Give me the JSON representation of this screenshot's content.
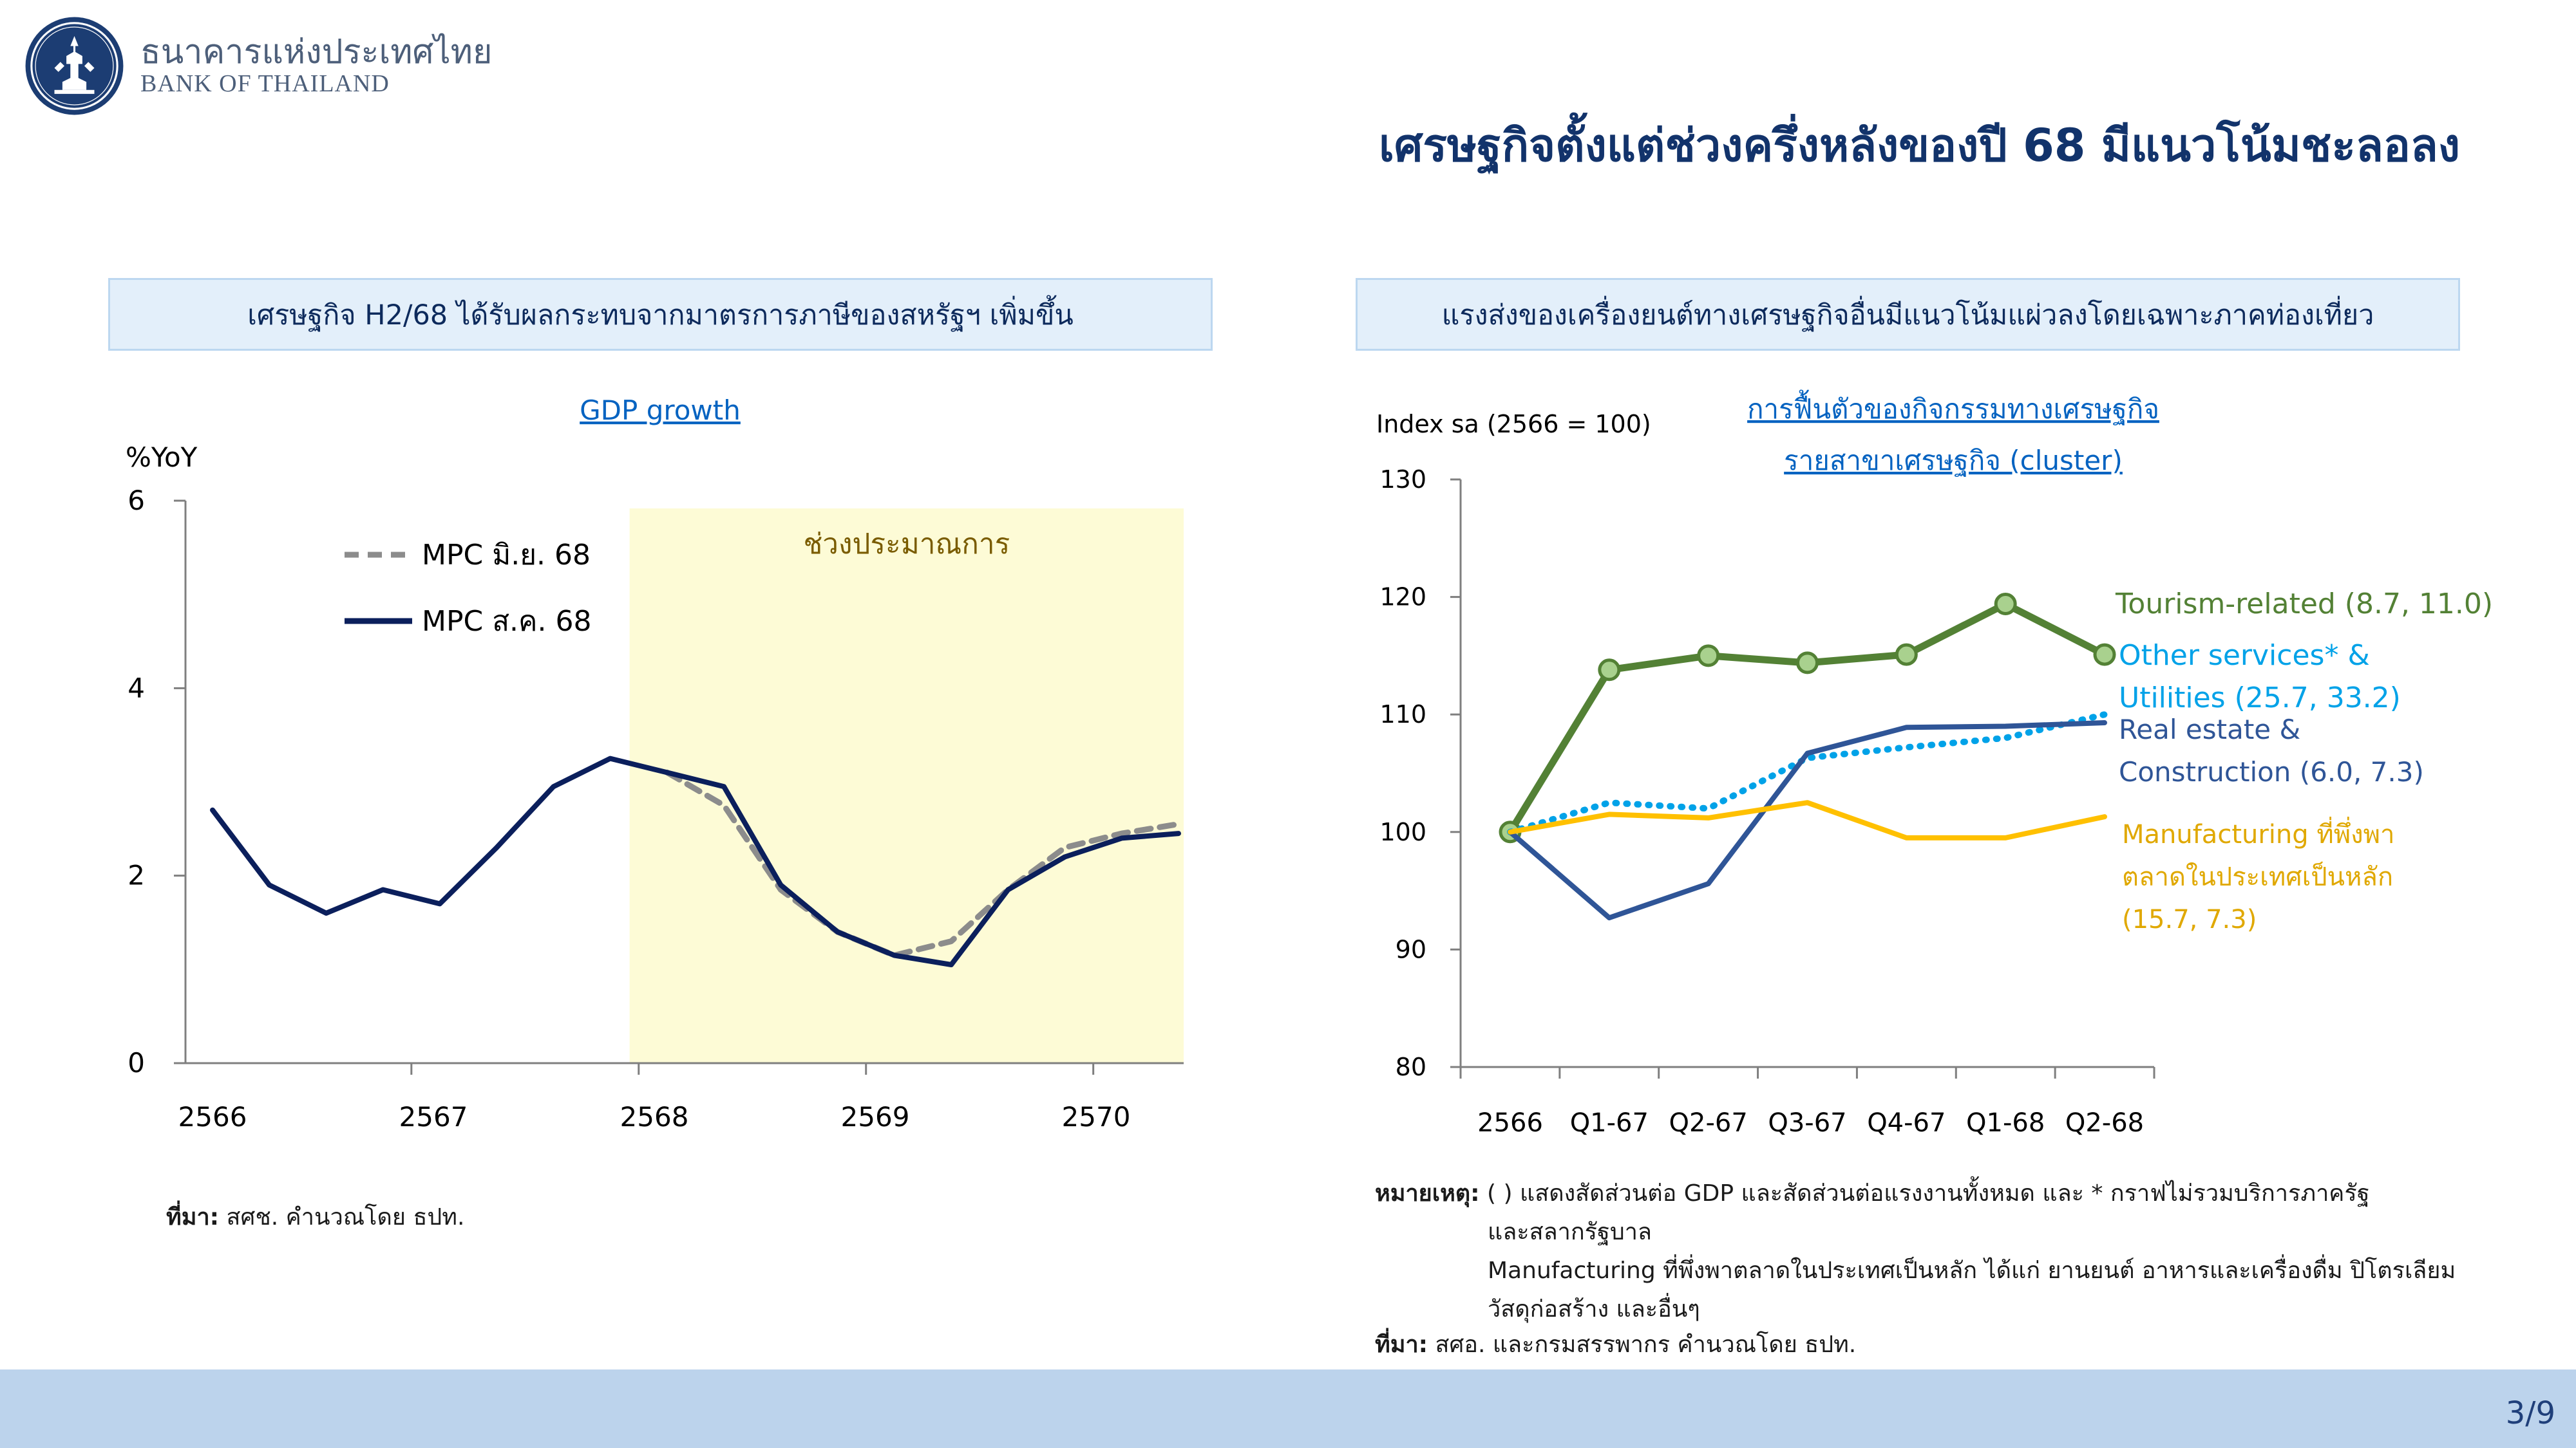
{
  "header": {
    "bank_name_th": "ธนาคารแห่งประเทศไทย",
    "bank_name_en": "BANK OF THAILAND",
    "logo_icon": "bank-of-thailand-seal-icon",
    "slide_title": "เศรษฐกิจตั้งแต่ช่วงครึ่งหลังของปี 68 มีแนวโน้มชะลอลง"
  },
  "left_panel": {
    "heading": "เศรษฐกิจ H2/68 ได้รับผลกระทบจากมาตรการภาษีของสหรัฐฯ เพิ่มขึ้น",
    "source_label": "ที่มา:",
    "source_text": " สศช. คำนวณโดย ธปท."
  },
  "right_panel": {
    "heading": "แรงส่งของเครื่องยนต์ทางเศรษฐกิจอื่นมีแนวโน้มแผ่วลงโดยเฉพาะภาคท่องเที่ยว",
    "note_label": "หมายเหตุ:",
    "note_line1": " ( ) แสดงสัดส่วนต่อ GDP  และสัดส่วนต่อแรงงานทั้งหมด และ * กราฟไม่รวมบริการภาครัฐ",
    "note_line2": "และสลากรัฐบาล",
    "note_line3": "Manufacturing ที่พึ่งพาตลาดในประเทศเป็นหลัก ได้แก่ ยานยนต์ อาหารและเครื่องดื่ม ปิโตรเลียม",
    "note_line4": "วัสดุก่อสร้าง และอื่นๆ",
    "source_label": "ที่มา:",
    "source_text": " สศอ. และกรมสรรพากร คำนวณโดย ธปท."
  },
  "chart_data": [
    {
      "type": "line",
      "title": "GDP growth",
      "ylabel": "%YoY",
      "ylim": [
        0,
        6
      ],
      "yticks": [
        0,
        2,
        4,
        6
      ],
      "xticks": [
        "2566",
        "2567",
        "2568",
        "2569",
        "2570"
      ],
      "x": [
        "Q1-66",
        "Q2-66",
        "Q3-66",
        "Q4-66",
        "Q1-67",
        "Q2-67",
        "Q3-67",
        "Q4-67",
        "Q1-68",
        "Q2-68",
        "Q3-68",
        "Q4-68",
        "Q1-69",
        "Q2-69",
        "Q3-69",
        "Q4-69",
        "Q1-70",
        "Q2-70"
      ],
      "shaded_region": {
        "from": "Q4-67",
        "label": "ช่วงประมาณการ",
        "color": "#fdfbd6"
      },
      "legend": "top-left",
      "series": [
        {
          "name": "MPC มิ.ย. 68",
          "style": "dashed",
          "color": "#8c8c8c",
          "values": [
            null,
            null,
            null,
            null,
            null,
            null,
            null,
            null,
            3.1,
            2.75,
            1.85,
            1.4,
            1.15,
            1.3,
            1.85,
            2.3,
            2.45,
            2.55
          ]
        },
        {
          "name": "MPC ส.ค. 68",
          "style": "solid",
          "color": "#0b1f5c",
          "values": [
            2.7,
            1.9,
            1.6,
            1.85,
            1.7,
            2.3,
            2.95,
            3.25,
            3.1,
            2.95,
            1.9,
            1.4,
            1.15,
            1.05,
            1.85,
            2.2,
            2.4,
            2.45
          ]
        }
      ]
    },
    {
      "type": "line",
      "title_lines": [
        "การฟื้นตัวของกิจกรรมทางเศรษฐกิจ",
        "รายสาขาเศรษฐกิจ (cluster)"
      ],
      "ylabel": "Index sa (2566 = 100)",
      "ylim": [
        80,
        130
      ],
      "yticks": [
        80,
        90,
        100,
        110,
        120,
        130
      ],
      "categories": [
        "2566",
        "Q1-67",
        "Q2-67",
        "Q3-67",
        "Q4-67",
        "Q1-68",
        "Q2-68"
      ],
      "series": [
        {
          "name": "Tourism-related",
          "label_lines": [
            "Tourism-related (8.7, 11.0)"
          ],
          "color": "#538135",
          "markers": true,
          "values": [
            100,
            113.8,
            115.0,
            114.4,
            115.1,
            119.4,
            115.1
          ]
        },
        {
          "name": "Other services* & Utilities",
          "label_lines": [
            "Other services* &",
            "Utilities (25.7, 33.2)"
          ],
          "color": "#00a2e8",
          "style": "dotted",
          "values": [
            100,
            102.5,
            102.0,
            106.3,
            107.2,
            108.0,
            110.0
          ]
        },
        {
          "name": "Real estate & Construction",
          "label_lines": [
            "Real estate &",
            "Construction (6.0, 7.3)"
          ],
          "color": "#2f5597",
          "values": [
            100,
            92.7,
            95.6,
            106.7,
            108.9,
            109.0,
            109.3
          ]
        },
        {
          "name": "Manufacturing",
          "label_lines": [
            "Manufacturing ที่พึ่งพา",
            "ตลาดในประเทศเป็นหลัก",
            "(15.7, 7.3)"
          ],
          "color": "#ffc000",
          "values": [
            100,
            101.5,
            101.2,
            102.5,
            99.5,
            99.5,
            101.3
          ]
        }
      ]
    }
  ],
  "footer": {
    "page_number": "3/9"
  }
}
